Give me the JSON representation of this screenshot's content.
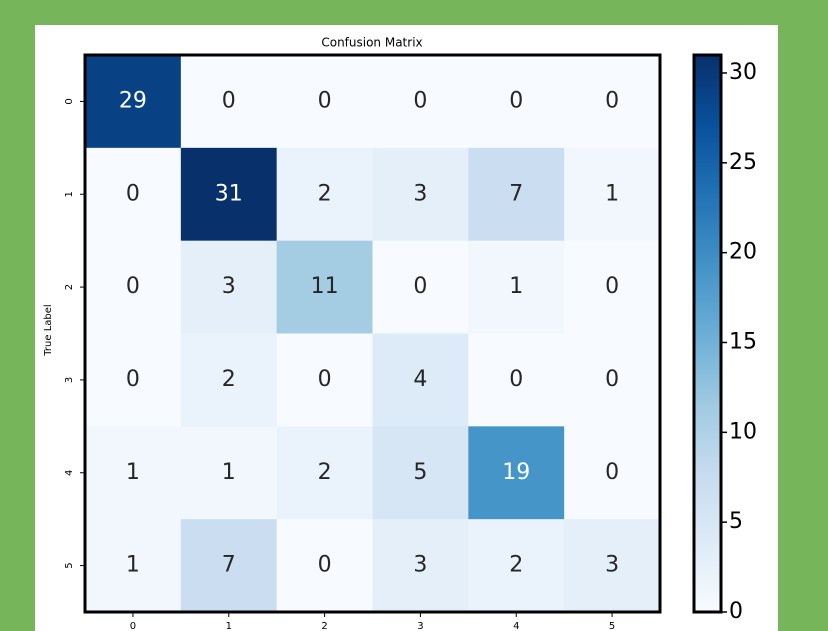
{
  "chart_data": {
    "type": "heatmap",
    "title": "Confusion Matrix",
    "y_label": "True Label",
    "x_categories": [
      "0",
      "1",
      "2",
      "3",
      "4",
      "5"
    ],
    "y_categories": [
      "0",
      "1",
      "2",
      "3",
      "4",
      "5"
    ],
    "values": [
      [
        29,
        0,
        0,
        0,
        0,
        0
      ],
      [
        0,
        31,
        2,
        3,
        7,
        1
      ],
      [
        0,
        3,
        11,
        0,
        1,
        0
      ],
      [
        0,
        2,
        0,
        4,
        0,
        0
      ],
      [
        1,
        1,
        2,
        5,
        19,
        0
      ],
      [
        1,
        7,
        0,
        3,
        2,
        3
      ]
    ],
    "colormap": "Blues",
    "clim": [
      0,
      31
    ],
    "cticks": [
      0,
      5,
      10,
      15,
      20,
      25,
      30
    ]
  }
}
